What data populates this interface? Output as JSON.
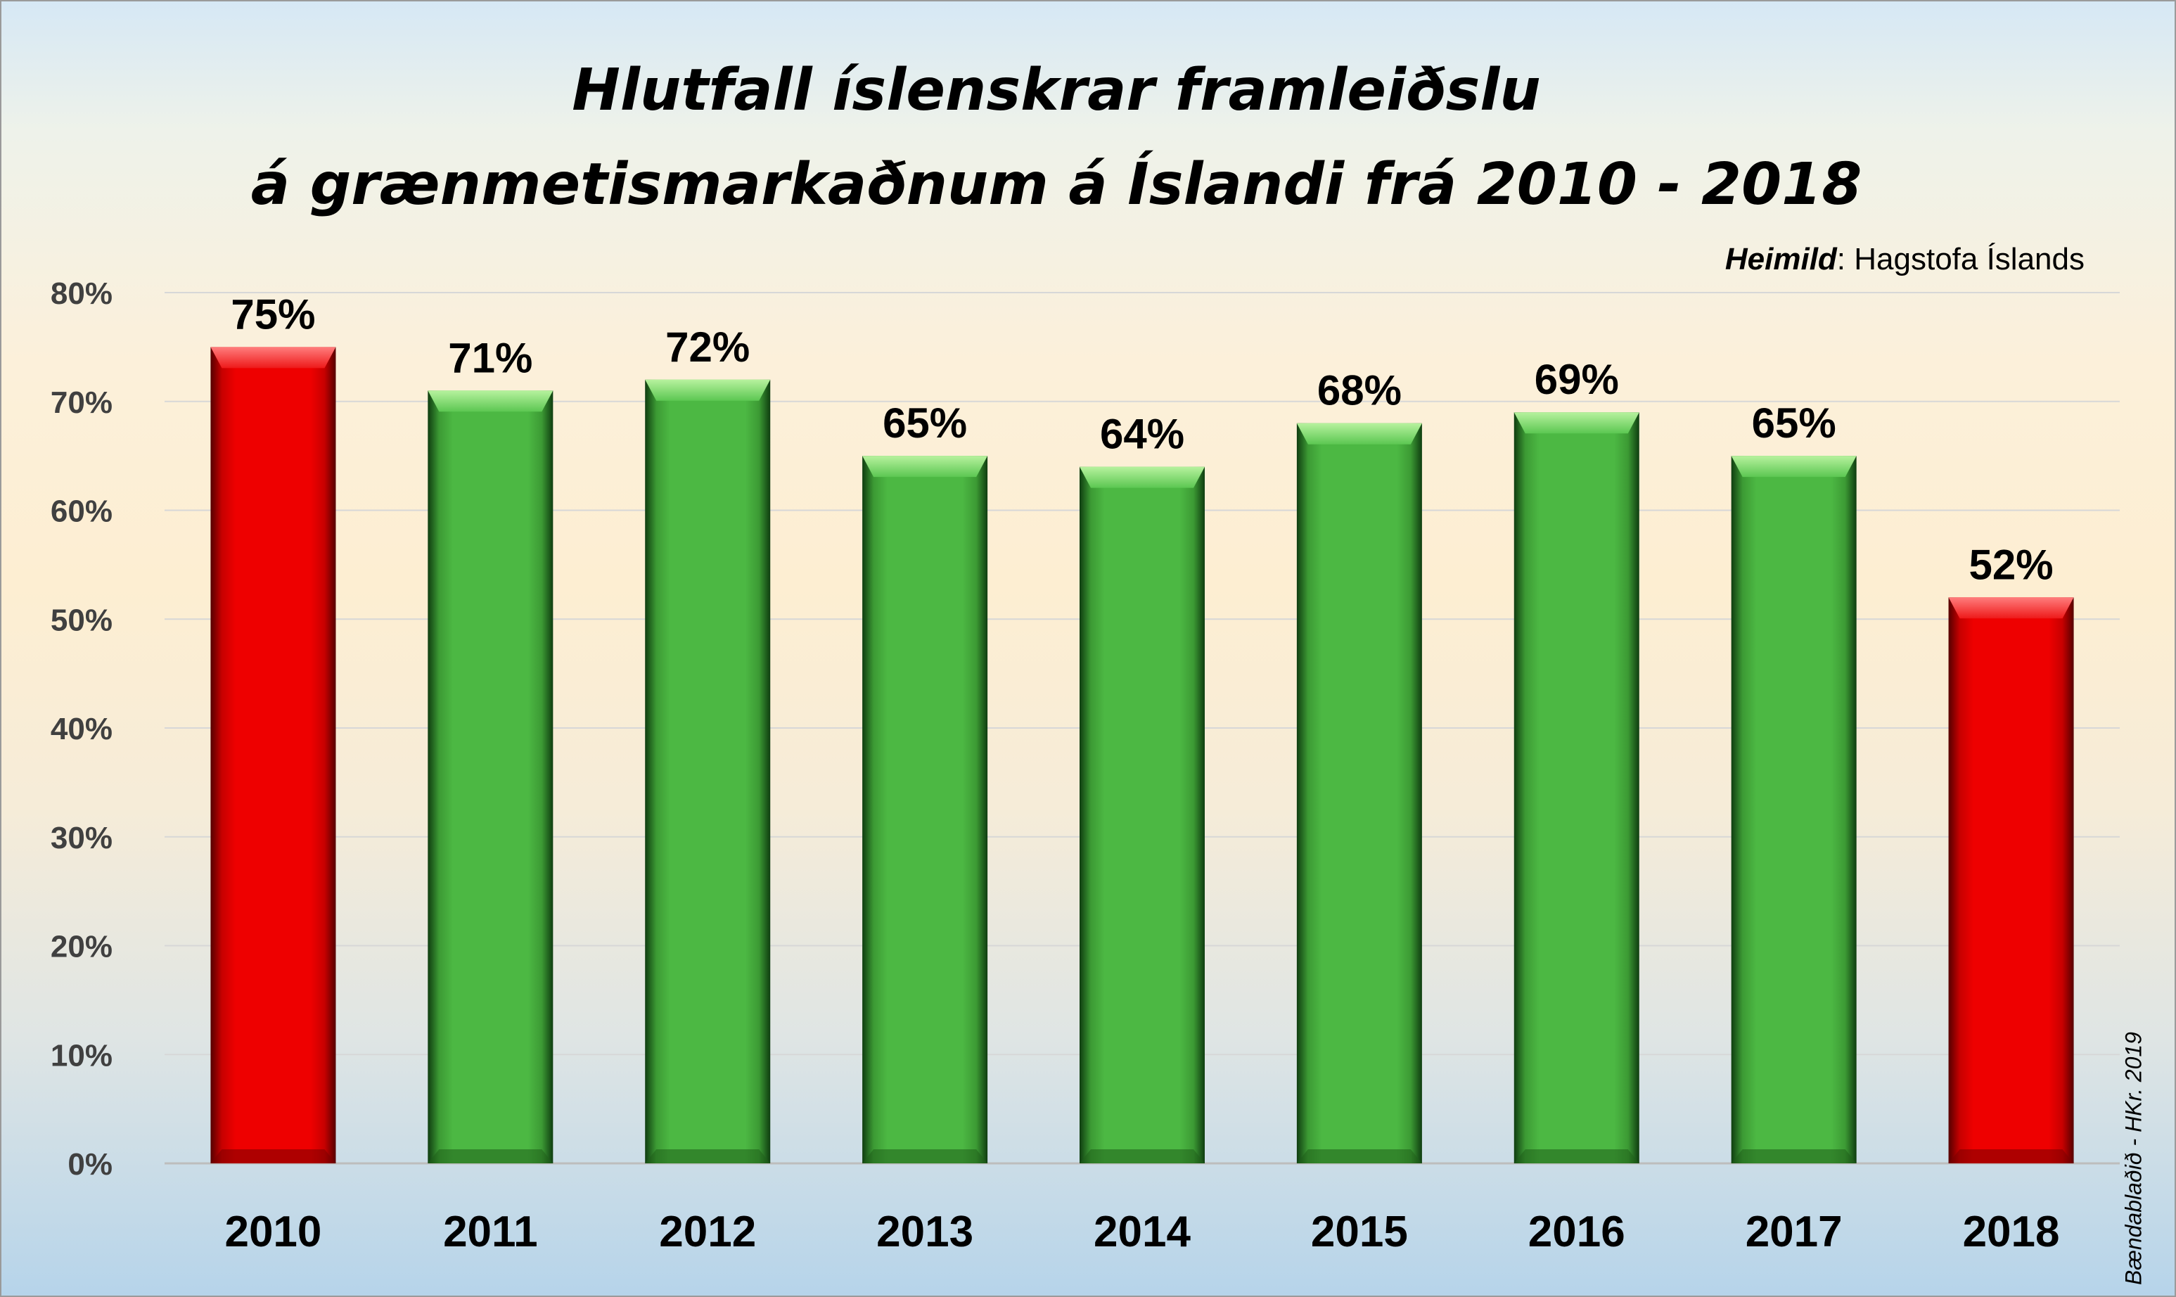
{
  "chart_data": {
    "type": "bar",
    "title": "Hlutfall íslenskrar framleiðslu",
    "subtitle": "á grænmetismarkaðnum á Íslandi frá 2010 - 2018",
    "source_label": "Heimild",
    "source_text": ": Hagstofa Íslands",
    "credit": "Bændablaðið - HKr. 2019",
    "categories": [
      "2010",
      "2011",
      "2012",
      "2013",
      "2014",
      "2015",
      "2016",
      "2017",
      "2018"
    ],
    "values": [
      75,
      71,
      72,
      65,
      64,
      68,
      69,
      65,
      52
    ],
    "data_labels": [
      "75%",
      "71%",
      "72%",
      "65%",
      "64%",
      "68%",
      "69%",
      "65%",
      "52%"
    ],
    "bar_colors": [
      "red",
      "green",
      "green",
      "green",
      "green",
      "green",
      "green",
      "green",
      "red"
    ],
    "colors": {
      "red": "#e60000",
      "green": "#4cb843"
    },
    "yticks": [
      0,
      10,
      20,
      30,
      40,
      50,
      60,
      70,
      80
    ],
    "ytick_labels": [
      "0%",
      "10%",
      "20%",
      "30%",
      "40%",
      "50%",
      "60%",
      "70%",
      "80%"
    ],
    "ylim": [
      0,
      80
    ],
    "xlabel": "",
    "ylabel": "",
    "grid": true,
    "legend": "none"
  }
}
